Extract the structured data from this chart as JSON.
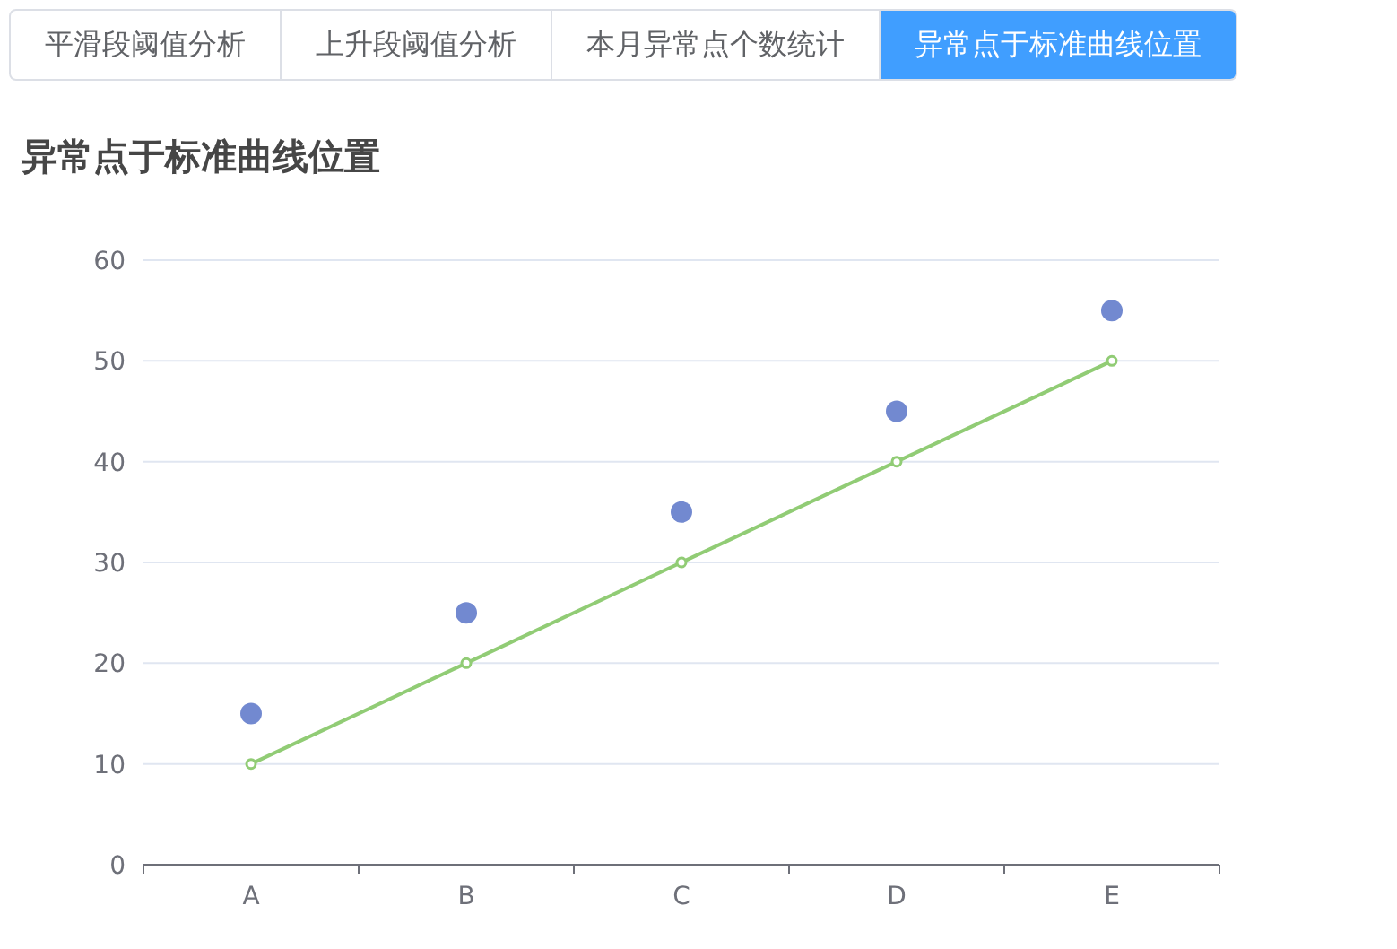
{
  "chart_data": {
    "type": "scatter",
    "title": "异常点于标准曲线位置",
    "annotations": [
      "平滑段阈值分析",
      "上升段阈值分析",
      "本月异常点个数统计",
      "异常点于标准曲线位置"
    ],
    "categories": [
      "A",
      "B",
      "C",
      "D",
      "E"
    ],
    "series": [
      {
        "color": "#7289d0",
        "values": [
          15,
          25,
          35,
          45,
          55
        ]
      },
      {
        "type": "line",
        "color": "#91cc75",
        "values": [
          10,
          20,
          30,
          40,
          50
        ]
      }
    ],
    "ylim": [
      0,
      60
    ],
    "yticks": [
      0,
      10,
      20,
      30,
      40,
      50,
      60
    ],
    "grid": "y",
    "marker": "circle",
    "line_style": "solid"
  }
}
